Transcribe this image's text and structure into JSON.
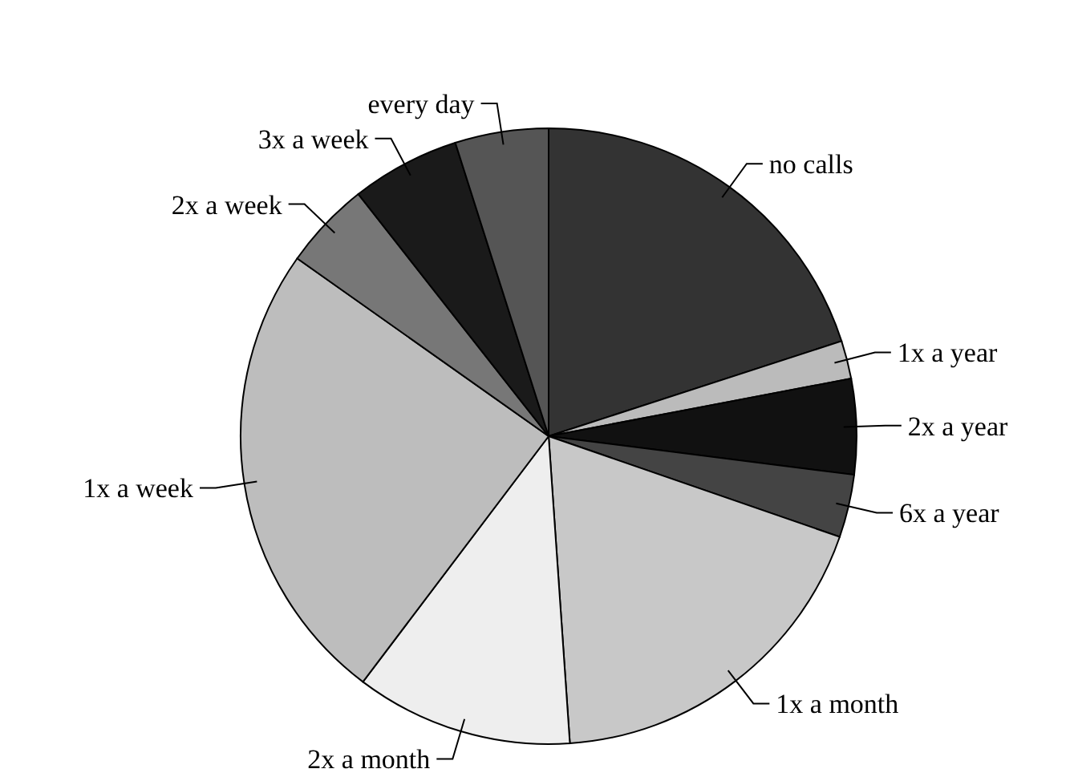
{
  "chart_data": {
    "type": "pie",
    "categories": [
      "no calls",
      "1x a year",
      "2x a year",
      "6x a year",
      "1x a month",
      "2x a month",
      "1x a week",
      "2x a week",
      "3x a week",
      "every day"
    ],
    "values": [
      20,
      2,
      5,
      3.3,
      18.6,
      11.4,
      24.5,
      4.6,
      5.7,
      4.9
    ],
    "colors": [
      "#333333",
      "#bbbbbb",
      "#111111",
      "#444444",
      "#c8c8c8",
      "#eeeeee",
      "#bdbdbd",
      "#777777",
      "#1a1a1a",
      "#555555"
    ]
  }
}
